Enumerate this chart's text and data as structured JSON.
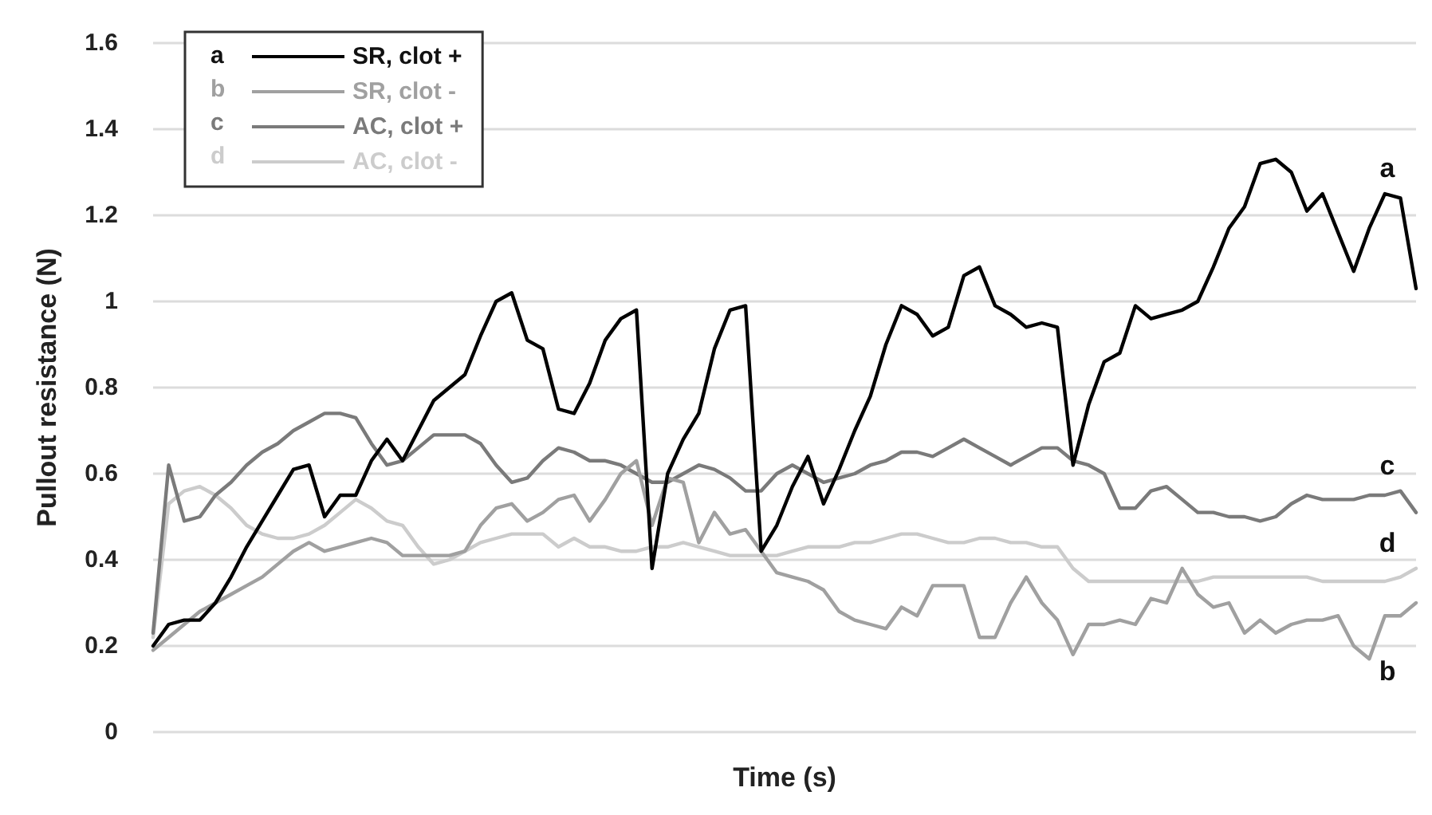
{
  "chart_data": {
    "type": "line",
    "xlabel": "Time (s)",
    "ylabel": "Pullout resistance (N)",
    "ylim": [
      0,
      1.6
    ],
    "yticks": [
      0,
      0.2,
      0.4,
      0.6,
      0.8,
      1,
      1.2,
      1.4,
      1.6
    ],
    "grid": "y",
    "legend": "top left",
    "marker": "none",
    "line_style": "solid",
    "tick_labels": "y",
    "categories": [
      null,
      null,
      null,
      null,
      null,
      null,
      null,
      null,
      null,
      null,
      null,
      null,
      null,
      null,
      null,
      null,
      null,
      null,
      null,
      null,
      null,
      null,
      null,
      null,
      null,
      null,
      null,
      null,
      null,
      null,
      null,
      null,
      null,
      null,
      null,
      null,
      null,
      null,
      null,
      null,
      null,
      null,
      null,
      null,
      null,
      null,
      null,
      null,
      null,
      null,
      null,
      null,
      null,
      null,
      null,
      null,
      null,
      null,
      null,
      null,
      null,
      null,
      null,
      null,
      null,
      null,
      null,
      null,
      null,
      null,
      null,
      null,
      null,
      null,
      null,
      null,
      null,
      null,
      null,
      null,
      null,
      null
    ],
    "annotations": [
      "a",
      "b",
      "c",
      "d"
    ],
    "series": [
      {
        "name": "SR, clot +",
        "color": "#000000",
        "values": [
          0.2,
          0.25,
          0.26,
          0.26,
          0.3,
          0.36,
          0.43,
          0.49,
          0.55,
          0.61,
          0.62,
          0.5,
          0.55,
          0.55,
          0.63,
          0.68,
          0.63,
          0.7,
          0.77,
          0.8,
          0.83,
          0.92,
          1.0,
          1.02,
          0.91,
          0.89,
          0.75,
          0.74,
          0.81,
          0.91,
          0.96,
          0.98,
          0.38,
          0.6,
          0.68,
          0.74,
          0.89,
          0.98,
          0.99,
          0.42,
          0.48,
          0.57,
          0.64,
          0.53,
          0.61,
          0.7,
          0.78,
          0.9,
          0.99,
          0.97,
          0.92,
          0.94,
          1.06,
          1.08,
          0.99,
          0.97,
          0.94,
          0.95,
          0.94,
          0.62,
          0.76,
          0.86,
          0.88,
          0.99,
          0.96,
          0.97,
          0.98,
          1.0,
          1.08,
          1.17,
          1.22,
          1.32,
          1.33,
          1.3,
          1.21,
          1.25,
          1.16,
          1.07,
          1.17,
          1.25,
          1.24,
          1.03
        ]
      },
      {
        "name": "SR, clot -",
        "color": "#a0a0a0",
        "values": [
          0.19,
          0.22,
          0.25,
          0.28,
          0.3,
          0.32,
          0.34,
          0.36,
          0.39,
          0.42,
          0.44,
          0.42,
          0.43,
          0.44,
          0.45,
          0.44,
          0.41,
          0.41,
          0.41,
          0.41,
          0.42,
          0.48,
          0.52,
          0.53,
          0.49,
          0.51,
          0.54,
          0.55,
          0.49,
          0.54,
          0.6,
          0.63,
          0.48,
          0.59,
          0.58,
          0.44,
          0.51,
          0.46,
          0.47,
          0.42,
          0.37,
          0.36,
          0.35,
          0.33,
          0.28,
          0.26,
          0.25,
          0.24,
          0.29,
          0.27,
          0.34,
          0.34,
          0.34,
          0.22,
          0.22,
          0.3,
          0.36,
          0.3,
          0.26,
          0.18,
          0.25,
          0.25,
          0.26,
          0.25,
          0.31,
          0.3,
          0.38,
          0.32,
          0.29,
          0.3,
          0.23,
          0.26,
          0.23,
          0.25,
          0.26,
          0.26,
          0.27,
          0.2,
          0.17,
          0.27,
          0.27,
          0.3
        ]
      },
      {
        "name": "AC, clot +",
        "color": "#7a7a7a",
        "values": [
          0.23,
          0.62,
          0.49,
          0.5,
          0.55,
          0.58,
          0.62,
          0.65,
          0.67,
          0.7,
          0.72,
          0.74,
          0.74,
          0.73,
          0.67,
          0.62,
          0.63,
          0.66,
          0.69,
          0.69,
          0.69,
          0.67,
          0.62,
          0.58,
          0.59,
          0.63,
          0.66,
          0.65,
          0.63,
          0.63,
          0.62,
          0.6,
          0.58,
          0.58,
          0.6,
          0.62,
          0.61,
          0.59,
          0.56,
          0.56,
          0.6,
          0.62,
          0.6,
          0.58,
          0.59,
          0.6,
          0.62,
          0.63,
          0.65,
          0.65,
          0.64,
          0.66,
          0.68,
          0.66,
          0.64,
          0.62,
          0.64,
          0.66,
          0.66,
          0.63,
          0.62,
          0.6,
          0.52,
          0.52,
          0.56,
          0.57,
          0.54,
          0.51,
          0.51,
          0.5,
          0.5,
          0.49,
          0.5,
          0.53,
          0.55,
          0.54,
          0.54,
          0.54,
          0.55,
          0.55,
          0.56,
          0.51
        ]
      },
      {
        "name": "AC, clot -",
        "color": "#cccccc",
        "values": [
          0.22,
          0.53,
          0.56,
          0.57,
          0.55,
          0.52,
          0.48,
          0.46,
          0.45,
          0.45,
          0.46,
          0.48,
          0.51,
          0.54,
          0.52,
          0.49,
          0.48,
          0.43,
          0.39,
          0.4,
          0.42,
          0.44,
          0.45,
          0.46,
          0.46,
          0.46,
          0.43,
          0.45,
          0.43,
          0.43,
          0.42,
          0.42,
          0.43,
          0.43,
          0.44,
          0.43,
          0.42,
          0.41,
          0.41,
          0.41,
          0.41,
          0.42,
          0.43,
          0.43,
          0.43,
          0.44,
          0.44,
          0.45,
          0.46,
          0.46,
          0.45,
          0.44,
          0.44,
          0.45,
          0.45,
          0.44,
          0.44,
          0.43,
          0.43,
          0.38,
          0.35,
          0.35,
          0.35,
          0.35,
          0.35,
          0.35,
          0.35,
          0.35,
          0.36,
          0.36,
          0.36,
          0.36,
          0.36,
          0.36,
          0.36,
          0.35,
          0.35,
          0.35,
          0.35,
          0.35,
          0.36,
          0.38
        ]
      }
    ]
  }
}
